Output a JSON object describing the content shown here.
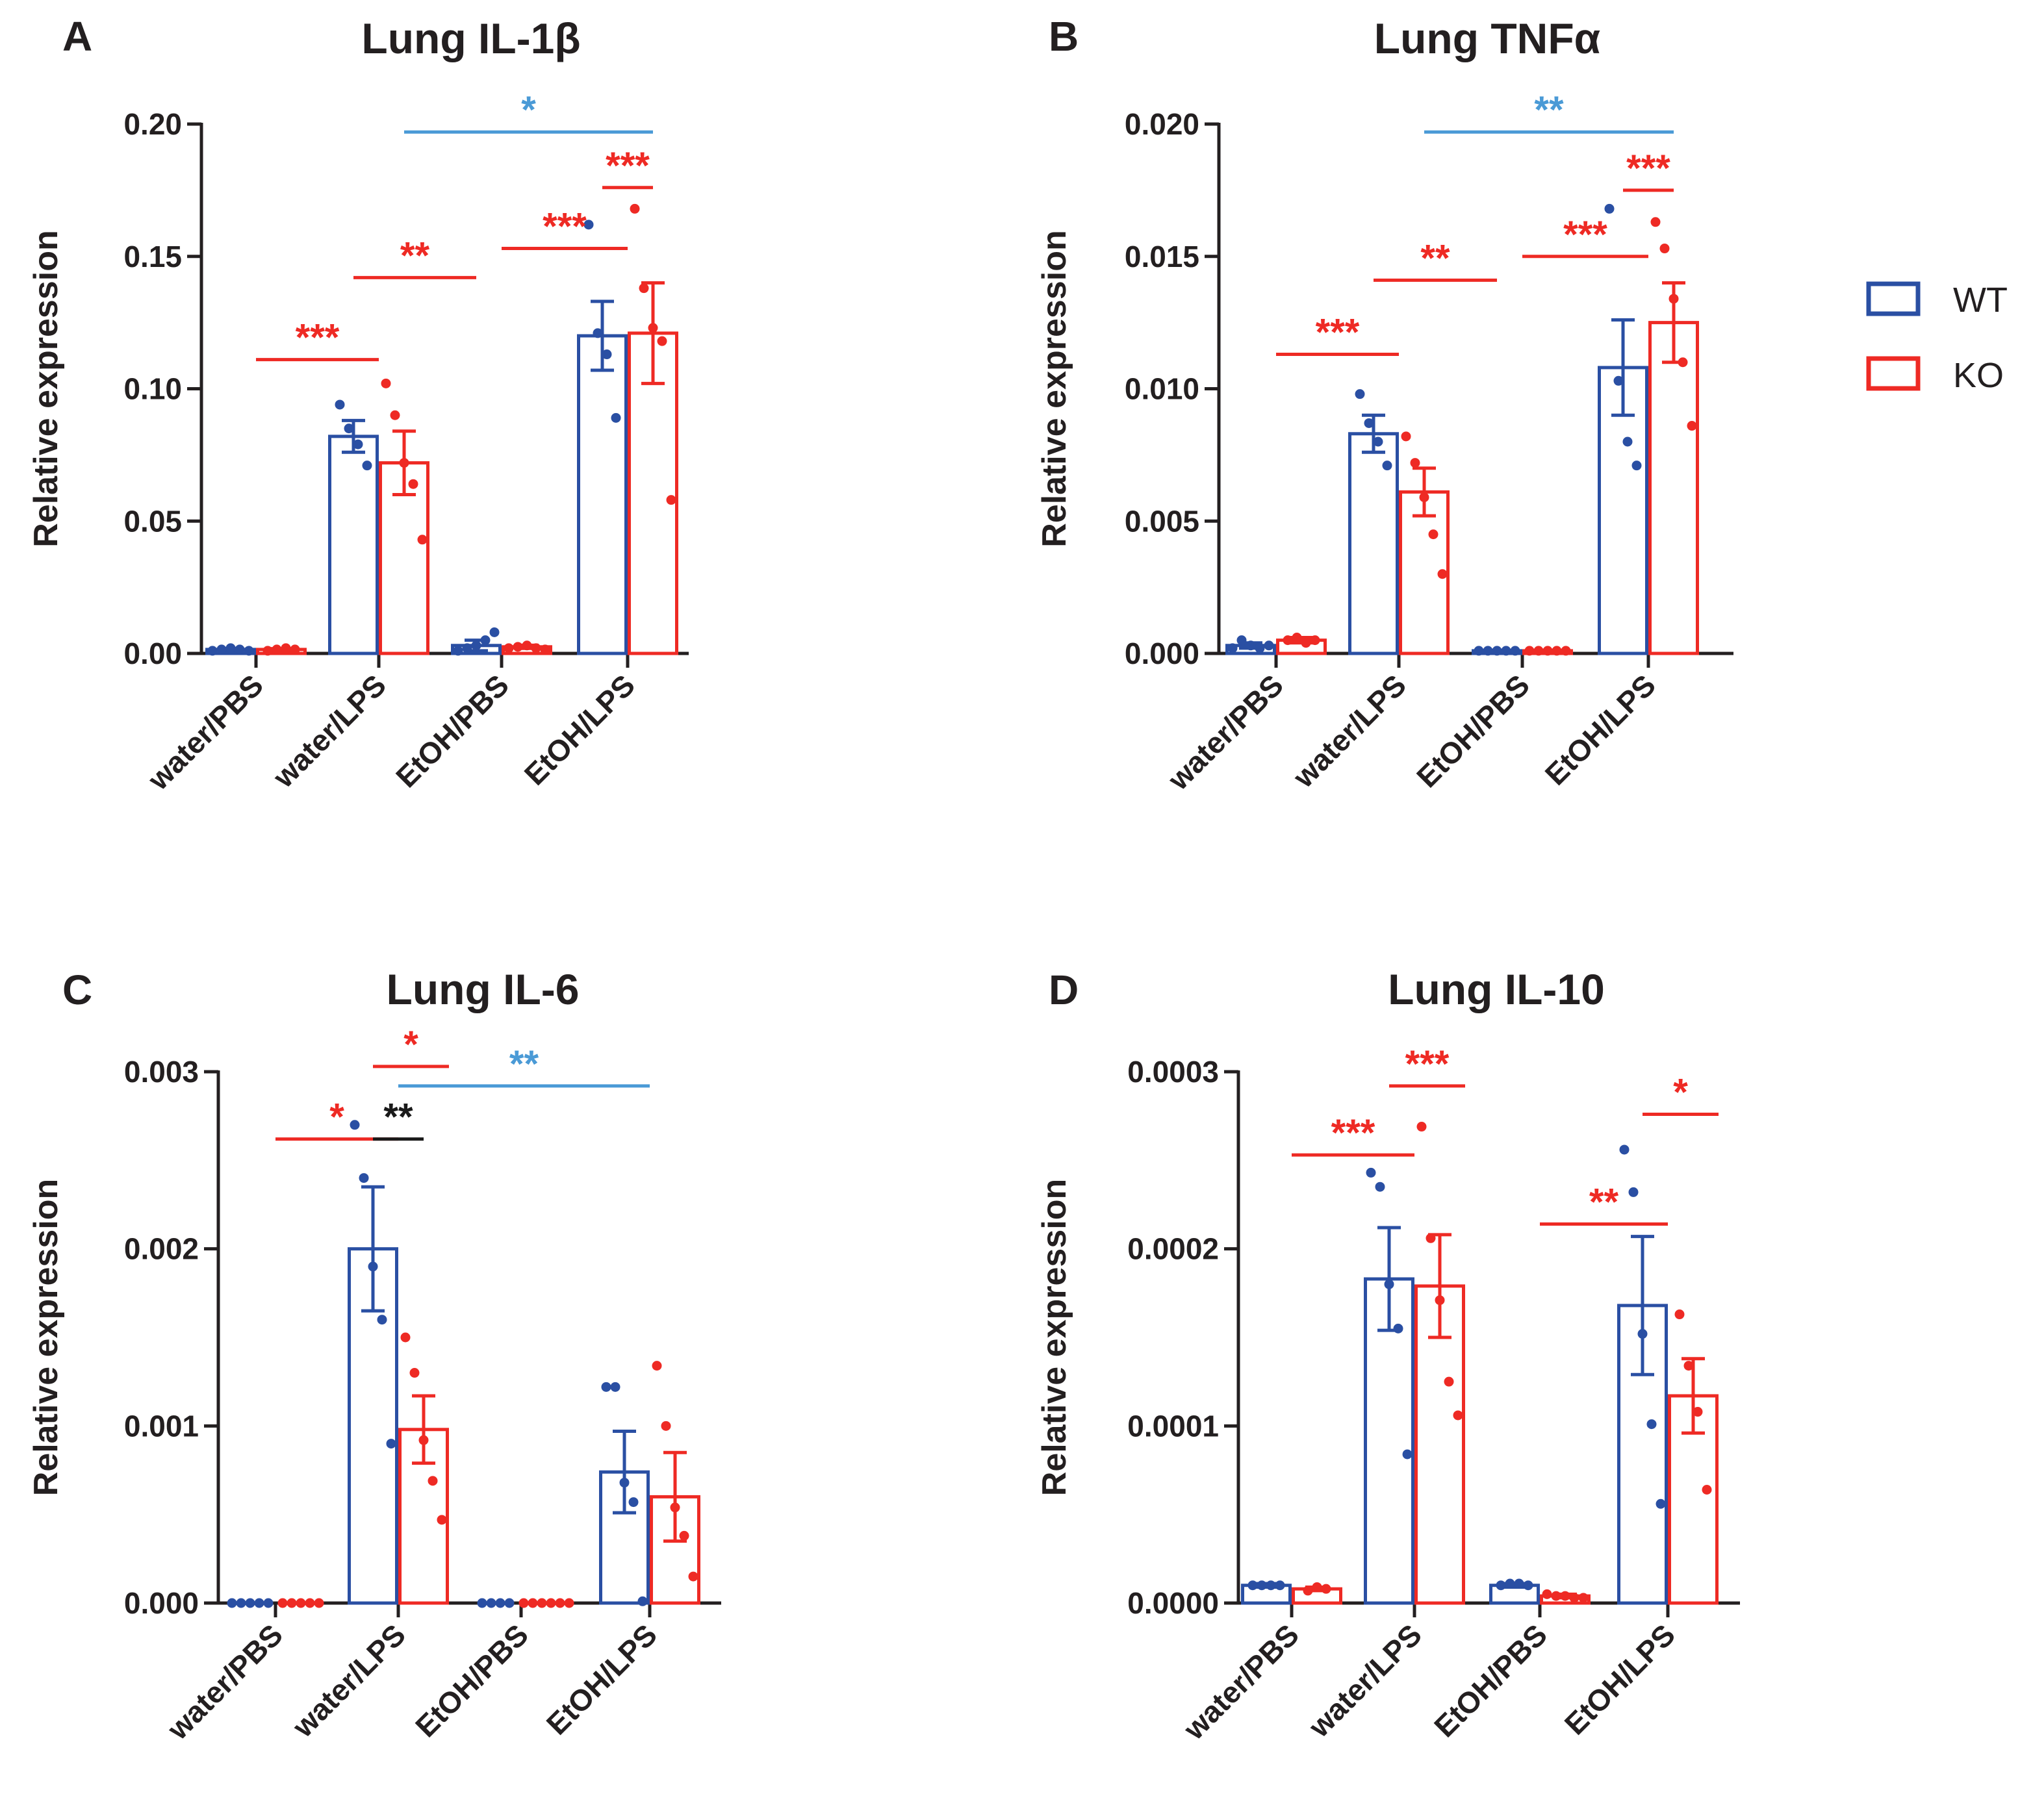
{
  "legend": {
    "items": [
      {
        "label": "WT",
        "color": "#2a4fa3"
      },
      {
        "label": "KO",
        "color": "#ee2a24"
      }
    ]
  },
  "colors": {
    "wt": "#2a4fa3",
    "ko": "#ee2a24",
    "between_groups": "#4a9ad6",
    "within_group": "#1a1a1a",
    "axis": "#231f20"
  },
  "chart_data": [
    {
      "type": "bar",
      "letter": "A",
      "title": "Lung IL-1β",
      "ylabel": "Relative expression",
      "ylim": [
        0,
        0.2
      ],
      "yticks": [
        "0.00",
        "0.05",
        "0.10",
        "0.15",
        "0.20"
      ],
      "categories": [
        "water/PBS",
        "water/LPS",
        "EtOH/PBS",
        "EtOH/LPS"
      ],
      "series": [
        {
          "name": "WT",
          "values": [
            0.0015,
            0.082,
            0.003,
            0.12
          ],
          "sem": [
            0.0004,
            0.006,
            0.002,
            0.013
          ],
          "points": [
            [
              0.001,
              0.0015,
              0.002,
              0.0015,
              0.001
            ],
            [
              0.094,
              0.085,
              0.079,
              0.071
            ],
            [
              0.001,
              0.002,
              0.003,
              0.005,
              0.008
            ],
            [
              0.162,
              0.121,
              0.113,
              0.089
            ]
          ]
        },
        {
          "name": "KO",
          "values": [
            0.0015,
            0.072,
            0.0025,
            0.121
          ],
          "sem": [
            0.0003,
            0.012,
            0.0006,
            0.019
          ],
          "points": [
            [
              0.001,
              0.0015,
              0.002,
              0.0015
            ],
            [
              0.102,
              0.09,
              0.072,
              0.064,
              0.043
            ],
            [
              0.002,
              0.0025,
              0.003,
              0.002,
              0.0015
            ],
            [
              0.168,
              0.138,
              0.123,
              0.118,
              0.058
            ]
          ]
        }
      ],
      "significance": [
        {
          "from": [
            0,
            0
          ],
          "to": [
            1,
            0
          ],
          "y": 0.111,
          "stars": "***",
          "color": "ko"
        },
        {
          "from": [
            1,
            -1
          ],
          "to": [
            2,
            -1
          ],
          "y": 0.142,
          "stars": "**",
          "color": "ko"
        },
        {
          "from": [
            2,
            0
          ],
          "to": [
            3,
            0
          ],
          "y": 0.153,
          "stars": "***",
          "color": "ko"
        },
        {
          "from": [
            3,
            -1
          ],
          "to": [
            3,
            1
          ],
          "y": 0.176,
          "stars": "***",
          "color": "ko"
        },
        {
          "from": [
            1,
            1
          ],
          "to": [
            3,
            1
          ],
          "y": 0.197,
          "stars": "*",
          "color": "between_groups"
        }
      ]
    },
    {
      "type": "bar",
      "letter": "B",
      "title": "Lung TNFα",
      "ylabel": "Relative expression",
      "ylim": [
        0,
        0.02
      ],
      "yticks": [
        "0.000",
        "0.005",
        "0.010",
        "0.015",
        "0.020"
      ],
      "categories": [
        "water/PBS",
        "water/LPS",
        "EtOH/PBS",
        "EtOH/LPS"
      ],
      "series": [
        {
          "name": "WT",
          "values": [
            0.0003,
            0.0083,
            0.0001,
            0.0108
          ],
          "sem": [
            0.0001,
            0.0007,
            2e-05,
            0.0018
          ],
          "points": [
            [
              0.0002,
              0.0005,
              0.0003,
              0.0002,
              0.0003
            ],
            [
              0.0098,
              0.0087,
              0.008,
              0.0071
            ],
            [
              0.0001,
              0.0001,
              0.0001,
              0.0001,
              0.0001
            ],
            [
              0.0168,
              0.0103,
              0.008,
              0.0071
            ]
          ]
        },
        {
          "name": "KO",
          "values": [
            0.0005,
            0.0061,
            0.0001,
            0.0125
          ],
          "sem": [
            0.0001,
            0.0009,
            2e-05,
            0.0015
          ],
          "points": [
            [
              0.0005,
              0.0006,
              0.0004,
              0.0005
            ],
            [
              0.0082,
              0.0072,
              0.0059,
              0.0045,
              0.003
            ],
            [
              0.0001,
              0.0001,
              0.0001,
              0.0001,
              0.0001
            ],
            [
              0.0163,
              0.0153,
              0.0134,
              0.011,
              0.0086
            ]
          ]
        }
      ],
      "significance": [
        {
          "from": [
            0,
            0
          ],
          "to": [
            1,
            0
          ],
          "y": 0.0113,
          "stars": "***",
          "color": "ko"
        },
        {
          "from": [
            1,
            -1
          ],
          "to": [
            2,
            -1
          ],
          "y": 0.0141,
          "stars": "**",
          "color": "ko"
        },
        {
          "from": [
            2,
            0
          ],
          "to": [
            3,
            0
          ],
          "y": 0.015,
          "stars": "***",
          "color": "ko"
        },
        {
          "from": [
            3,
            -1
          ],
          "to": [
            3,
            1
          ],
          "y": 0.0175,
          "stars": "***",
          "color": "ko"
        },
        {
          "from": [
            1,
            1
          ],
          "to": [
            3,
            1
          ],
          "y": 0.0197,
          "stars": "**",
          "color": "between_groups"
        }
      ]
    },
    {
      "type": "bar",
      "letter": "C",
      "title": "Lung IL-6",
      "ylabel": "Relative expression",
      "ylim": [
        0,
        0.003
      ],
      "yticks": [
        "0.000",
        "0.001",
        "0.002",
        "0.003"
      ],
      "categories": [
        "water/PBS",
        "water/LPS",
        "EtOH/PBS",
        "EtOH/LPS"
      ],
      "series": [
        {
          "name": "WT",
          "values": [
            0.0,
            0.002,
            0.0,
            0.00074
          ],
          "sem": [
            0.0,
            0.00035,
            0.0,
            0.00023
          ],
          "points": [
            [
              0.0,
              0.0,
              0.0,
              0.0,
              0.0
            ],
            [
              0.0027,
              0.0024,
              0.0019,
              0.0016,
              0.0009
            ],
            [
              0.0,
              0.0,
              0.0,
              0.0
            ],
            [
              0.00122,
              0.00122,
              0.00068,
              0.00057,
              1e-05
            ]
          ]
        },
        {
          "name": "KO",
          "values": [
            0.0,
            0.00098,
            0.0,
            0.0006
          ],
          "sem": [
            0.0,
            0.00019,
            0.0,
            0.00025
          ],
          "points": [
            [
              0.0,
              0.0,
              0.0,
              0.0,
              0.0
            ],
            [
              0.0015,
              0.0013,
              0.00092,
              0.00069,
              0.00047
            ],
            [
              0.0,
              0.0,
              0.0,
              0.0,
              0.0,
              0.0
            ],
            [
              0.00134,
              0.001,
              0.00054,
              0.00038,
              0.00015
            ]
          ]
        }
      ],
      "significance": [
        {
          "from": [
            0,
            0
          ],
          "to": [
            1,
            0
          ],
          "y": 0.00262,
          "stars": "*",
          "color": "ko"
        },
        {
          "from": [
            1,
            -1
          ],
          "to": [
            1,
            1
          ],
          "y": 0.00262,
          "stars": "**",
          "color": "within_group"
        },
        {
          "from": [
            1,
            -1
          ],
          "to": [
            1,
            2
          ],
          "y": 0.00303,
          "stars": "*",
          "color": "ko"
        },
        {
          "from": [
            1,
            0
          ],
          "to": [
            3,
            0
          ],
          "y": 0.00292,
          "stars": "**",
          "color": "between_groups"
        }
      ]
    },
    {
      "type": "bar",
      "letter": "D",
      "title": "Lung IL-10",
      "ylabel": "Relative expression",
      "ylim": [
        0,
        0.0003
      ],
      "yticks": [
        "0.0000",
        "0.0001",
        "0.0002",
        "0.0003"
      ],
      "categories": [
        "water/PBS",
        "water/LPS",
        "EtOH/PBS",
        "EtOH/LPS"
      ],
      "series": [
        {
          "name": "WT",
          "values": [
            1e-05,
            0.000183,
            1e-05,
            0.000168
          ],
          "sem": [
            1e-06,
            2.9e-05,
            1e-06,
            3.9e-05
          ],
          "points": [
            [
              1e-05,
              1e-05,
              1e-05,
              1e-05
            ],
            [
              0.000243,
              0.000235,
              0.00018,
              0.000155,
              8.4e-05
            ],
            [
              1e-05,
              1.1e-05,
              1.1e-05,
              1e-05
            ],
            [
              0.000256,
              0.000232,
              0.000152,
              0.000101,
              5.6e-05
            ]
          ]
        },
        {
          "name": "KO",
          "values": [
            8e-06,
            0.000179,
            4e-06,
            0.000117
          ],
          "sem": [
            1e-06,
            2.9e-05,
            1e-06,
            2.1e-05
          ],
          "points": [
            [
              7e-06,
              9e-06,
              8e-06
            ],
            [
              0.000269,
              0.000206,
              0.000171,
              0.000125,
              0.000106
            ],
            [
              5e-06,
              4e-06,
              4e-06,
              3e-06,
              3e-06
            ],
            [
              0.000163,
              0.000134,
              0.000108,
              6.4e-05
            ]
          ]
        }
      ],
      "significance": [
        {
          "from": [
            0,
            0
          ],
          "to": [
            1,
            0
          ],
          "y": 0.000253,
          "stars": "***",
          "color": "ko"
        },
        {
          "from": [
            1,
            -1
          ],
          "to": [
            1,
            2
          ],
          "y": 0.000292,
          "stars": "***",
          "color": "ko"
        },
        {
          "from": [
            2,
            0
          ],
          "to": [
            3,
            0
          ],
          "y": 0.000214,
          "stars": "**",
          "color": "ko"
        },
        {
          "from": [
            3,
            -1
          ],
          "to": [
            3,
            2
          ],
          "y": 0.000276,
          "stars": "*",
          "color": "ko"
        }
      ]
    }
  ]
}
